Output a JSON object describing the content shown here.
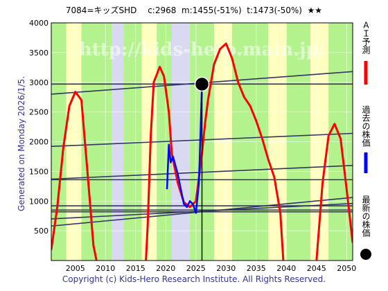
{
  "header": {
    "title": "7084=キッズSHD　 c:2968  m:1455(-51%)  t:1473(-50%)  ★★"
  },
  "side_note": "Generated on Monday 2026/1/5.",
  "footer": "Copyright (c) Kids-Hero Research Institute. All Rights Reserved.",
  "watermark": "http://kids-hero.main.jp/",
  "legend": {
    "ai_forecast": "ＡＩ予測",
    "past_price": "過去の株価",
    "latest_price": "最新の株価"
  },
  "colors": {
    "forecast": "#ff0000",
    "past": "#0000ff",
    "latest": "#000000",
    "trend": "#333366",
    "band_green": "#99ee66",
    "band_yellow": "#ffffaa",
    "band_blue": "#ccccee"
  },
  "chart_data": {
    "type": "line",
    "title": "7084=キッズSHD",
    "xlim": [
      2001,
      2051
    ],
    "ylim": [
      0,
      4000
    ],
    "x_ticks": [
      2005,
      2010,
      2015,
      2020,
      2025,
      2030,
      2035,
      2040,
      2045,
      2050
    ],
    "y_ticks": [
      500,
      1000,
      1500,
      2000,
      2500,
      3000,
      3500,
      4000
    ],
    "grid": true,
    "series": [
      {
        "name": "ＡＩ予測",
        "color": "#ff0000",
        "segments": [
          [
            [
              2001,
              180
            ],
            [
              2002,
              900
            ],
            [
              2003,
              1900
            ],
            [
              2004,
              2600
            ],
            [
              2005,
              2840
            ],
            [
              2006,
              2700
            ],
            [
              2007,
              1500
            ],
            [
              2008,
              250
            ],
            [
              2008.5,
              0
            ]
          ],
          [
            [
              2016.7,
              0
            ],
            [
              2017,
              600
            ],
            [
              2017.5,
              2100
            ],
            [
              2018,
              3000
            ],
            [
              2019,
              3260
            ],
            [
              2019.7,
              3100
            ],
            [
              2020.5,
              2500
            ],
            [
              2021,
              1800
            ],
            [
              2022,
              1300
            ],
            [
              2023,
              980
            ],
            [
              2024,
              900
            ],
            [
              2025,
              1000
            ],
            [
              2026,
              1800
            ],
            [
              2026.5,
              2300
            ],
            [
              2027,
              2700
            ],
            [
              2028,
              3300
            ],
            [
              2029,
              3560
            ],
            [
              2030,
              3650
            ],
            [
              2031,
              3400
            ],
            [
              2032,
              3000
            ],
            [
              2033,
              2750
            ],
            [
              2034,
              2600
            ],
            [
              2035,
              2350
            ],
            [
              2036,
              2050
            ],
            [
              2037,
              1700
            ],
            [
              2038,
              1400
            ],
            [
              2039,
              800
            ],
            [
              2039.5,
              0
            ]
          ],
          [
            [
              2045,
              0
            ],
            [
              2046,
              1300
            ],
            [
              2047,
              2100
            ],
            [
              2048,
              2300
            ],
            [
              2049,
              2050
            ],
            [
              2050,
              1200
            ],
            [
              2051,
              300
            ]
          ]
        ]
      },
      {
        "name": "過去の株価",
        "color": "#0000ff",
        "points": [
          [
            2020.2,
            1200
          ],
          [
            2020.5,
            1950
          ],
          [
            2020.8,
            1650
          ],
          [
            2021.2,
            1750
          ],
          [
            2021.6,
            1600
          ],
          [
            2022,
            1450
          ],
          [
            2022.5,
            1200
          ],
          [
            2023,
            950
          ],
          [
            2023.5,
            900
          ],
          [
            2024,
            1000
          ],
          [
            2024.5,
            950
          ],
          [
            2025,
            800
          ],
          [
            2025.5,
            1300
          ],
          [
            2025.8,
            2300
          ],
          [
            2026,
            2968
          ]
        ]
      }
    ],
    "trend_lines": [
      [
        [
          2001,
          2800
        ],
        [
          2051,
          3180
        ]
      ],
      [
        [
          2001,
          2970
        ],
        [
          2051,
          2970
        ]
      ],
      [
        [
          2001,
          1920
        ],
        [
          2051,
          2140
        ]
      ],
      [
        [
          2001,
          1370
        ],
        [
          2051,
          1600
        ]
      ],
      [
        [
          2001,
          1360
        ],
        [
          2051,
          1360
        ]
      ],
      [
        [
          2001,
          920
        ],
        [
          2051,
          920
        ]
      ],
      [
        [
          2001,
          850
        ],
        [
          2051,
          850
        ]
      ],
      [
        [
          2001,
          580
        ],
        [
          2051,
          1060
        ]
      ],
      [
        [
          2001,
          700
        ],
        [
          2051,
          960
        ]
      ],
      [
        [
          2001,
          820
        ],
        [
          2051,
          820
        ]
      ]
    ],
    "latest_point": {
      "x": 2026,
      "y": 2968
    }
  }
}
